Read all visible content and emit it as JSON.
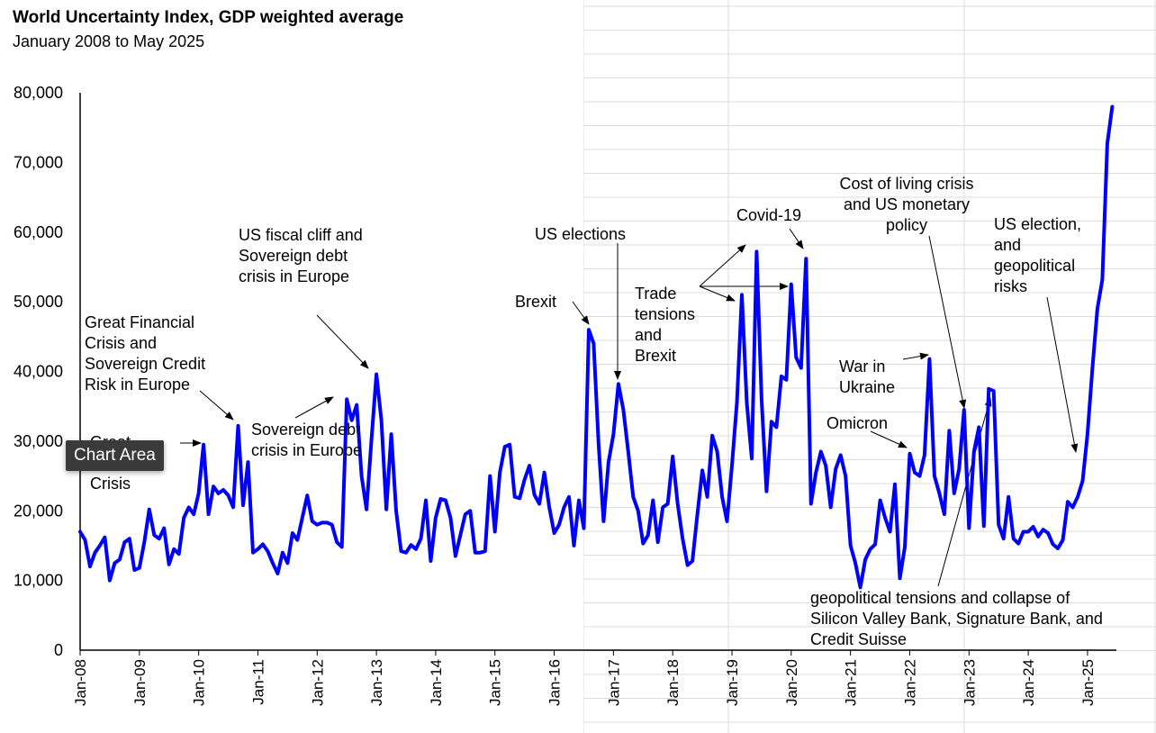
{
  "title": "World Uncertainty Index, GDP weighted average",
  "subtitle": "January 2008 to May 2025",
  "tooltip": "Chart Area",
  "chart_data": {
    "type": "line",
    "title": "World Uncertainty Index, GDP weighted average",
    "subtitle": "January 2008 to May 2025",
    "xlabel": "",
    "ylabel": "",
    "ylim": [
      0,
      80000
    ],
    "yticks": [
      "0",
      "10,000",
      "20,000",
      "30,000",
      "40,000",
      "50,000",
      "60,000",
      "70,000",
      "80,000"
    ],
    "xticks": [
      "Jan-08",
      "Jan-09",
      "Jan-10",
      "Jan-11",
      "Jan-12",
      "Jan-13",
      "Jan-14",
      "Jan-15",
      "Jan-16",
      "Jan-17",
      "Jan-18",
      "Jan-19",
      "Jan-20",
      "Jan-21",
      "Jan-22",
      "Jan-23",
      "Jan-24",
      "Jan-25"
    ],
    "line_color": "#0000ff",
    "grid": false,
    "x_start": "2008-01",
    "series": [
      {
        "values": [
          17000,
          15800,
          12000,
          14000,
          15000,
          16200,
          10000,
          12500,
          13000,
          15500,
          16000,
          11500,
          11800,
          15500,
          20200,
          16500,
          16000,
          17500,
          12300,
          14500,
          13800,
          19000,
          20500,
          19500,
          22500,
          29500,
          19500,
          23500,
          22500,
          23000,
          22200,
          20500,
          32200,
          20800,
          27000,
          14000,
          14500,
          15200,
          14200,
          12500,
          11000,
          14000,
          12500,
          16800,
          15800,
          19000,
          22200,
          18500,
          18000,
          18300,
          18300,
          18000,
          15500,
          14800,
          36000,
          33000,
          35200,
          25000,
          20200,
          30200,
          39600,
          33000,
          20200,
          31000,
          20000,
          14200,
          14000,
          15100,
          14500,
          16000,
          21500,
          12800,
          19000,
          21700,
          21500,
          19000,
          13500,
          16500,
          19500,
          20000,
          14000,
          14000,
          14200,
          25000,
          17000,
          25500,
          29200,
          29500,
          22000,
          21800,
          24500,
          26500,
          22300,
          21000,
          25500,
          20500,
          16800,
          18000,
          20500,
          22000,
          15000,
          21500,
          17500,
          46000,
          44000,
          29500,
          18500,
          27000,
          31000,
          38200,
          34500,
          28500,
          22000,
          20000,
          15300,
          16500,
          21500,
          15500,
          20500,
          21000,
          27800,
          21000,
          16000,
          12200,
          12800,
          19500,
          25800,
          22000,
          30800,
          28500,
          22000,
          18500,
          26500,
          35500,
          51000,
          35500,
          27500,
          57200,
          36000,
          22800,
          32800,
          32000,
          39300,
          38800,
          52500,
          42000,
          40500,
          56200,
          21000,
          25500,
          28500,
          26500,
          20500,
          26000,
          28000,
          25000,
          15000,
          12500,
          9000,
          13000,
          14500,
          15200,
          21500,
          19000,
          17000,
          23800,
          10300,
          14800,
          28200,
          25500,
          25000,
          28000,
          41800,
          25000,
          22500,
          19500,
          31500,
          22500,
          26000,
          34500,
          17500,
          28500,
          32000,
          17800,
          37500,
          37200,
          18000,
          16000,
          22000,
          16000,
          15300,
          17000,
          17000,
          17700,
          16300,
          17300,
          16800,
          15200,
          14600,
          15800,
          21300,
          20500,
          22000,
          24300,
          31000,
          40500,
          49000,
          53200,
          72700,
          78000
        ]
      }
    ],
    "annotations": [
      "Great Financial Crisis and Sovereign Credit Risk in Europe",
      "Great Financial Crisis",
      "US fiscal cliff and Sovereign debt crisis in Europe",
      "Sovereign debt crisis in Europe",
      "Brexit",
      "US elections",
      "Trade tensions and Brexit",
      "Covid-19",
      "Cost of living crisis and US monetary policy",
      "War in Ukraine",
      "Omicron",
      "US election, and geopolitical risks",
      "geopolitical tensions and collapse of Silicon Valley Bank, Signature Bank, and Credit Suisse"
    ]
  }
}
